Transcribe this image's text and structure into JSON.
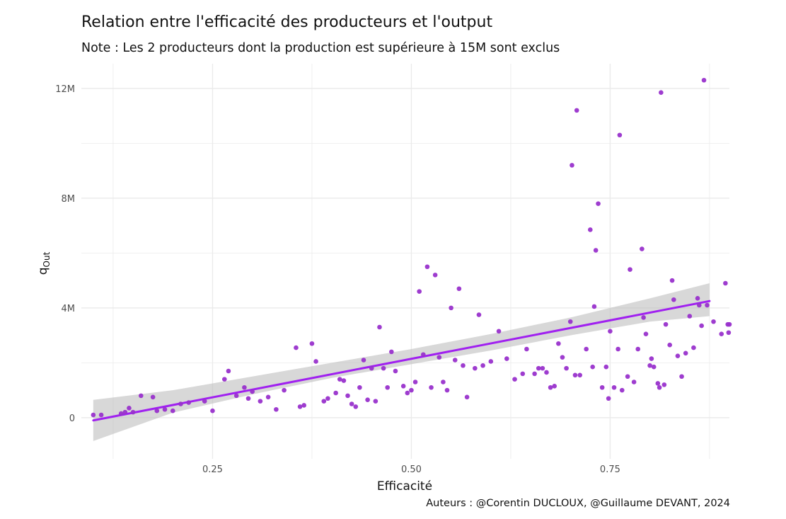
{
  "header": {
    "title": "Relation entre l'efficacité des producteurs et l'output",
    "subtitle": "Note : Les 2 producteurs dont la production est supérieure à 15M sont exclus"
  },
  "footer": {
    "caption": "Auteurs : @Corentin DUCLOUX, @Guillaume DEVANT, 2024"
  },
  "colors": {
    "points": "#9932CC",
    "fit_line": "#A020F0",
    "ci_band": "#BEBEBE",
    "grid": "#EBEBEB"
  },
  "chart_data": {
    "type": "scatter",
    "title": "Relation entre l'efficacité des producteurs et l'output",
    "subtitle": "Note : Les 2 producteurs dont la production est supérieure à 15M sont exclus",
    "xlabel": "Efficacité",
    "ylabel": "q_Out",
    "ylabel_main": "q",
    "ylabel_sub": "Out",
    "xlim": [
      0.085,
      0.9
    ],
    "ylim": [
      -1500000,
      12900000
    ],
    "grid": true,
    "legend": "none",
    "x_ticks": [
      {
        "value": 0.25,
        "label": "0.25"
      },
      {
        "value": 0.5,
        "label": "0.50"
      },
      {
        "value": 0.75,
        "label": "0.75"
      }
    ],
    "y_ticks": [
      {
        "value": 0,
        "label": "0"
      },
      {
        "value": 4000000,
        "label": "4M"
      },
      {
        "value": 8000000,
        "label": "8M"
      },
      {
        "value": 12000000,
        "label": "12M"
      }
    ],
    "points": [
      [
        0.1,
        100000
      ],
      [
        0.11,
        100000
      ],
      [
        0.135,
        150000
      ],
      [
        0.14,
        200000
      ],
      [
        0.145,
        350000
      ],
      [
        0.15,
        200000
      ],
      [
        0.16,
        800000
      ],
      [
        0.175,
        750000
      ],
      [
        0.18,
        250000
      ],
      [
        0.19,
        300000
      ],
      [
        0.2,
        250000
      ],
      [
        0.21,
        500000
      ],
      [
        0.22,
        550000
      ],
      [
        0.24,
        600000
      ],
      [
        0.25,
        250000
      ],
      [
        0.265,
        1400000
      ],
      [
        0.27,
        1700000
      ],
      [
        0.28,
        800000
      ],
      [
        0.29,
        1100000
      ],
      [
        0.295,
        700000
      ],
      [
        0.3,
        950000
      ],
      [
        0.31,
        600000
      ],
      [
        0.32,
        750000
      ],
      [
        0.33,
        300000
      ],
      [
        0.34,
        1000000
      ],
      [
        0.355,
        2550000
      ],
      [
        0.36,
        400000
      ],
      [
        0.365,
        450000
      ],
      [
        0.375,
        2700000
      ],
      [
        0.38,
        2050000
      ],
      [
        0.39,
        600000
      ],
      [
        0.395,
        700000
      ],
      [
        0.405,
        900000
      ],
      [
        0.41,
        1400000
      ],
      [
        0.415,
        1350000
      ],
      [
        0.42,
        800000
      ],
      [
        0.425,
        500000
      ],
      [
        0.43,
        400000
      ],
      [
        0.435,
        1100000
      ],
      [
        0.44,
        2100000
      ],
      [
        0.445,
        650000
      ],
      [
        0.45,
        1800000
      ],
      [
        0.455,
        600000
      ],
      [
        0.46,
        3300000
      ],
      [
        0.465,
        1800000
      ],
      [
        0.47,
        1100000
      ],
      [
        0.475,
        2400000
      ],
      [
        0.48,
        1700000
      ],
      [
        0.49,
        1150000
      ],
      [
        0.495,
        900000
      ],
      [
        0.5,
        1000000
      ],
      [
        0.505,
        1300000
      ],
      [
        0.51,
        4600000
      ],
      [
        0.515,
        2300000
      ],
      [
        0.52,
        5500000
      ],
      [
        0.525,
        1100000
      ],
      [
        0.53,
        5200000
      ],
      [
        0.535,
        2200000
      ],
      [
        0.54,
        1300000
      ],
      [
        0.545,
        1000000
      ],
      [
        0.55,
        4000000
      ],
      [
        0.555,
        2100000
      ],
      [
        0.56,
        4700000
      ],
      [
        0.565,
        1900000
      ],
      [
        0.57,
        750000
      ],
      [
        0.58,
        1800000
      ],
      [
        0.585,
        3750000
      ],
      [
        0.59,
        1900000
      ],
      [
        0.6,
        2050000
      ],
      [
        0.61,
        3150000
      ],
      [
        0.62,
        2150000
      ],
      [
        0.63,
        1400000
      ],
      [
        0.64,
        1600000
      ],
      [
        0.645,
        2500000
      ],
      [
        0.655,
        1600000
      ],
      [
        0.66,
        1800000
      ],
      [
        0.665,
        1800000
      ],
      [
        0.67,
        1650000
      ],
      [
        0.675,
        1100000
      ],
      [
        0.68,
        1150000
      ],
      [
        0.685,
        2700000
      ],
      [
        0.69,
        2200000
      ],
      [
        0.695,
        1800000
      ],
      [
        0.7,
        3500000
      ],
      [
        0.702,
        9200000
      ],
      [
        0.706,
        1550000
      ],
      [
        0.708,
        11200000
      ],
      [
        0.712,
        1550000
      ],
      [
        0.72,
        2500000
      ],
      [
        0.725,
        6850000
      ],
      [
        0.728,
        1850000
      ],
      [
        0.73,
        4050000
      ],
      [
        0.732,
        6100000
      ],
      [
        0.735,
        7800000
      ],
      [
        0.74,
        1100000
      ],
      [
        0.745,
        1850000
      ],
      [
        0.748,
        700000
      ],
      [
        0.75,
        3150000
      ],
      [
        0.755,
        1100000
      ],
      [
        0.76,
        2500000
      ],
      [
        0.762,
        10300000
      ],
      [
        0.765,
        1000000
      ],
      [
        0.772,
        1500000
      ],
      [
        0.775,
        5400000
      ],
      [
        0.78,
        1300000
      ],
      [
        0.785,
        2500000
      ],
      [
        0.79,
        6150000
      ],
      [
        0.792,
        3650000
      ],
      [
        0.795,
        3050000
      ],
      [
        0.8,
        1900000
      ],
      [
        0.802,
        2150000
      ],
      [
        0.805,
        1850000
      ],
      [
        0.81,
        1250000
      ],
      [
        0.812,
        1100000
      ],
      [
        0.814,
        11850000
      ],
      [
        0.818,
        1200000
      ],
      [
        0.82,
        3400000
      ],
      [
        0.825,
        2650000
      ],
      [
        0.828,
        5000000
      ],
      [
        0.83,
        4300000
      ],
      [
        0.835,
        2250000
      ],
      [
        0.84,
        1500000
      ],
      [
        0.845,
        2350000
      ],
      [
        0.85,
        3700000
      ],
      [
        0.855,
        2550000
      ],
      [
        0.86,
        4350000
      ],
      [
        0.862,
        4100000
      ],
      [
        0.865,
        3350000
      ],
      [
        0.868,
        12300000
      ],
      [
        0.872,
        4100000
      ],
      [
        0.88,
        3500000
      ],
      [
        0.89,
        3050000
      ],
      [
        0.895,
        4900000
      ],
      [
        0.898,
        3400000
      ],
      [
        0.899,
        3100000
      ],
      [
        0.9,
        3400000
      ]
    ],
    "fit": {
      "method": "lm",
      "x": [
        0.1,
        0.875
      ],
      "y": [
        -100000,
        4250000
      ],
      "ci": [
        {
          "x": 0.1,
          "lower": -850000,
          "upper": 650000
        },
        {
          "x": 0.2,
          "lower": 180000,
          "upper": 1000000
        },
        {
          "x": 0.3,
          "lower": 850000,
          "upper": 1500000
        },
        {
          "x": 0.4,
          "lower": 1450000,
          "upper": 2000000
        },
        {
          "x": 0.5,
          "lower": 1950000,
          "upper": 2500000
        },
        {
          "x": 0.6,
          "lower": 2450000,
          "upper": 3050000
        },
        {
          "x": 0.7,
          "lower": 3000000,
          "upper": 3650000
        },
        {
          "x": 0.8,
          "lower": 3500000,
          "upper": 4350000
        },
        {
          "x": 0.875,
          "lower": 3700000,
          "upper": 4900000
        }
      ]
    }
  }
}
